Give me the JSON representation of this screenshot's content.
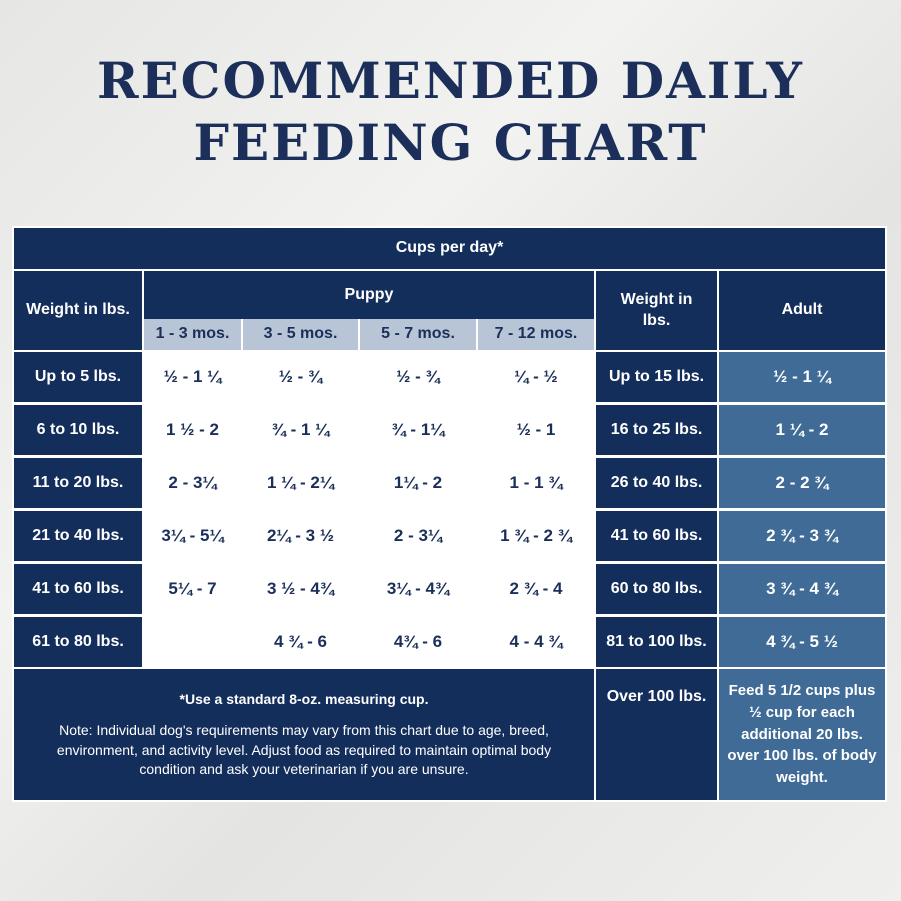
{
  "title": {
    "line1": "RECOMMENDED DAILY",
    "line2": "FEEDING CHART"
  },
  "header": {
    "cups": "Cups per day*",
    "weight_left": "Weight in lbs.",
    "puppy": "Puppy",
    "weight_right": "Weight in lbs.",
    "adult": "Adult",
    "ages": [
      "1 - 3 mos.",
      "3 - 5 mos.",
      "5 - 7 mos.",
      "7 - 12 mos."
    ]
  },
  "rows": [
    {
      "weight": "Up to 5 lbs.",
      "puppy": [
        "½ - 1 ¼",
        "½ - ¾",
        "½ - ¾",
        "¼ - ½"
      ],
      "adult_weight": "Up to 15 lbs.",
      "adult": "½ - 1 ¼"
    },
    {
      "weight": "6 to 10 lbs.",
      "puppy": [
        "1 ½ - 2",
        "¾ - 1 ¼",
        "¾ - 1¼",
        "½ - 1"
      ],
      "adult_weight": "16 to 25 lbs.",
      "adult": "1 ¼ - 2"
    },
    {
      "weight": "11 to 20 lbs.",
      "puppy": [
        "2 - 3¼",
        "1 ¼ - 2¼",
        "1¼ - 2",
        "1 - 1 ¾"
      ],
      "adult_weight": "26 to 40 lbs.",
      "adult": "2 - 2 ¾"
    },
    {
      "weight": "21 to 40 lbs.",
      "puppy": [
        "3¼ - 5¼",
        "2¼ - 3 ½",
        "2 - 3¼",
        "1 ¾ - 2 ¾"
      ],
      "adult_weight": "41 to 60 lbs.",
      "adult": "2 ¾ - 3 ¾"
    },
    {
      "weight": "41 to 60 lbs.",
      "puppy": [
        "5¼ - 7",
        "3 ½ - 4¾",
        "3¼ - 4¾",
        "2 ¾ - 4"
      ],
      "adult_weight": "60 to 80 lbs.",
      "adult": "3 ¾ - 4 ¾"
    },
    {
      "weight": "61 to 80 lbs.",
      "puppy": [
        "",
        "4 ¾ - 6",
        "4¾ - 6",
        "4 - 4 ¾"
      ],
      "adult_weight": "81 to 100 lbs.",
      "adult": "4 ¾ - 5 ½"
    }
  ],
  "footer": {
    "cup_note": "*Use a standard 8-oz. measuring cup.",
    "note": "Note: Individual dog's requirements may vary from this chart due to age, breed, environment, and activity level. Adjust food as required to maintain optimal body condition and ask your veterinarian if you are unsure.",
    "over_weight": "Over 100 lbs.",
    "over_adult": "Feed 5 1/2 cups plus ½ cup for each additional 20 lbs. over 100 lbs. of body weight."
  }
}
